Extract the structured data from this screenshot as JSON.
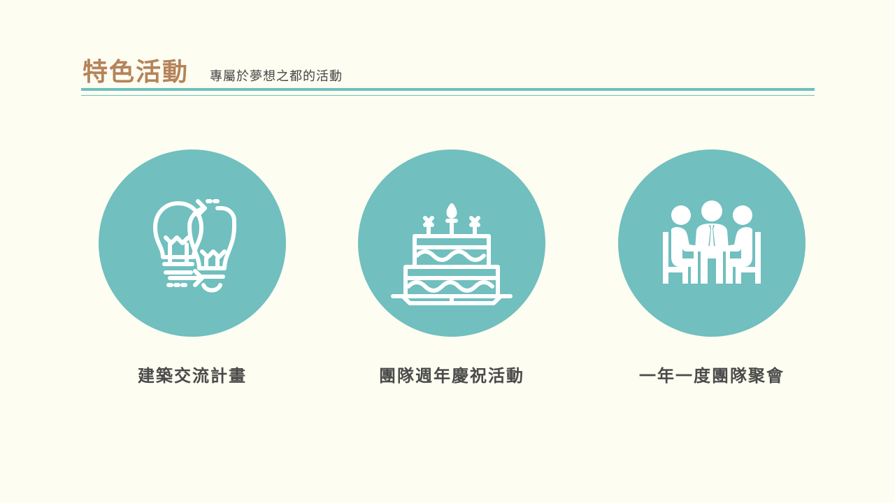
{
  "header": {
    "title": "特色活動",
    "subtitle": "專屬於夢想之都的活動"
  },
  "colors": {
    "background": "#FDFDF1",
    "accent": "#6FBFBF",
    "title": "#B5835A",
    "text": "#4A4A4A"
  },
  "features": [
    {
      "icon": "lightbulbs-exchange-icon",
      "label": "建築交流計畫"
    },
    {
      "icon": "birthday-cake-icon",
      "label": "團隊週年慶祝活動"
    },
    {
      "icon": "team-meeting-icon",
      "label": "一年一度團隊聚會"
    }
  ]
}
